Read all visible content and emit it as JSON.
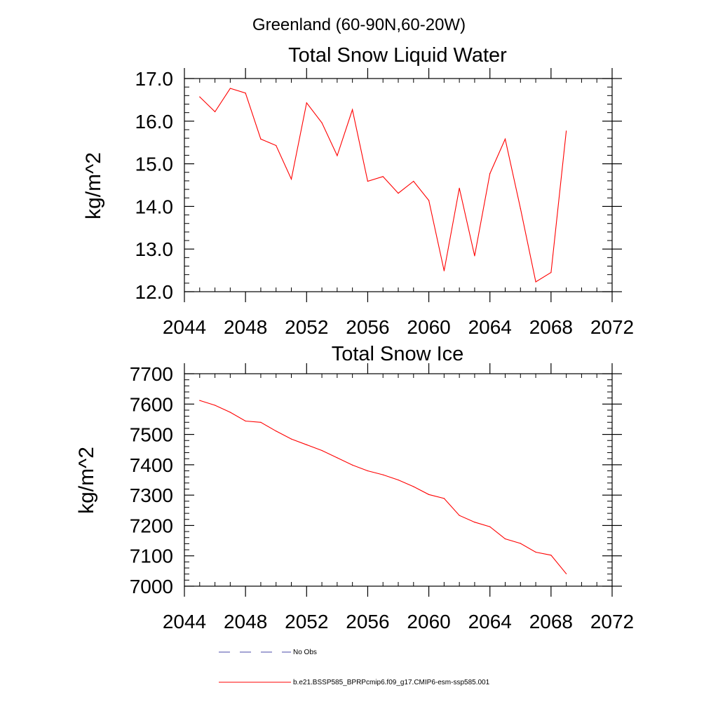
{
  "figure": {
    "title": "Greenland (60-90N,60-20W)"
  },
  "colors": {
    "series": "#ff0000",
    "obs": "#4a4aa8",
    "axis": "#000000"
  },
  "chart_data": [
    {
      "type": "line",
      "title": "Total Snow Liquid Water",
      "xlabel": "",
      "ylabel": "kg/m^2",
      "xlim": [
        2044,
        2072
      ],
      "ylim": [
        12.0,
        17.0
      ],
      "x_ticks": [
        2044,
        2048,
        2052,
        2056,
        2060,
        2064,
        2068,
        2072
      ],
      "x_tick_labels": [
        "2044",
        "2048",
        "2052",
        "2056",
        "2060",
        "2064",
        "2068",
        "2072"
      ],
      "y_ticks": [
        12.0,
        13.0,
        14.0,
        15.0,
        16.0,
        17.0
      ],
      "y_tick_labels": [
        "12.0",
        "13.0",
        "14.0",
        "15.0",
        "16.0",
        "17.0"
      ],
      "grid": false,
      "series": [
        {
          "name": "b.e21.BSSP585_BPRPcmip6.f09_g17.CMIP6-esm-ssp585.001",
          "x": [
            2045,
            2046,
            2047,
            2048,
            2049,
            2050,
            2051,
            2052,
            2053,
            2054,
            2055,
            2056,
            2057,
            2058,
            2059,
            2060,
            2061,
            2062,
            2063,
            2064,
            2065,
            2066,
            2067,
            2068,
            2069
          ],
          "values": [
            16.57,
            16.22,
            16.77,
            16.66,
            15.58,
            15.43,
            14.64,
            16.43,
            15.96,
            15.19,
            16.27,
            14.59,
            14.7,
            14.31,
            14.59,
            14.14,
            12.49,
            14.43,
            12.84,
            14.77,
            15.58,
            13.95,
            12.23,
            12.45,
            15.77
          ]
        }
      ]
    },
    {
      "type": "line",
      "title": "Total Snow Ice",
      "xlabel": "",
      "ylabel": "kg/m^2",
      "xlim": [
        2044,
        2072
      ],
      "ylim": [
        7000,
        7700
      ],
      "x_ticks": [
        2044,
        2048,
        2052,
        2056,
        2060,
        2064,
        2068,
        2072
      ],
      "x_tick_labels": [
        "2044",
        "2048",
        "2052",
        "2056",
        "2060",
        "2064",
        "2068",
        "2072"
      ],
      "y_ticks": [
        7000,
        7100,
        7200,
        7300,
        7400,
        7500,
        7600,
        7700
      ],
      "y_tick_labels": [
        "7000",
        "7100",
        "7200",
        "7300",
        "7400",
        "7500",
        "7600",
        "7700"
      ],
      "grid": false,
      "series": [
        {
          "name": "b.e21.BSSP585_BPRPcmip6.f09_g17.CMIP6-esm-ssp585.001",
          "x": [
            2045,
            2046,
            2047,
            2048,
            2049,
            2050,
            2051,
            2052,
            2053,
            2054,
            2055,
            2056,
            2057,
            2058,
            2059,
            2060,
            2061,
            2062,
            2063,
            2064,
            2065,
            2066,
            2067,
            2068,
            2069
          ],
          "values": [
            7612,
            7596,
            7573,
            7544,
            7540,
            7511,
            7485,
            7466,
            7447,
            7423,
            7399,
            7380,
            7367,
            7350,
            7328,
            7302,
            7289,
            7233,
            7211,
            7196,
            7156,
            7141,
            7112,
            7102,
            7041
          ]
        }
      ]
    }
  ],
  "legend": {
    "placement": "bottom",
    "items": [
      {
        "label": "No Obs",
        "style": "dashed"
      },
      {
        "label": "b.e21.BSSP585_BPRPcmip6.f09_g17.CMIP6-esm-ssp585.001",
        "style": "solid"
      }
    ]
  }
}
